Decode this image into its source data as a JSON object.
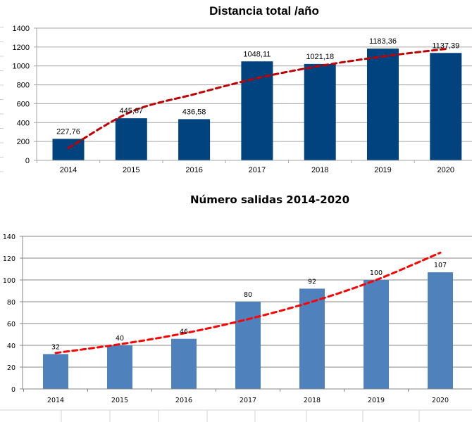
{
  "chart_data": [
    {
      "type": "bar",
      "title": "Distancia total /año",
      "xlabel": "",
      "ylabel": "",
      "categories": [
        "2014",
        "2015",
        "2016",
        "2017",
        "2018",
        "2019",
        "2020"
      ],
      "values": [
        227.76,
        445.67,
        436.58,
        1048.11,
        1021.18,
        1183.36,
        1137.39
      ],
      "data_labels": [
        "227,76",
        "445,67",
        "436,58",
        "1048,11",
        "1021,18",
        "1183,36",
        "1137,39"
      ],
      "ylim": [
        0,
        1400
      ],
      "yticks": [
        0,
        200,
        400,
        600,
        800,
        1000,
        1200,
        1400
      ],
      "grid": true,
      "legend": "none",
      "bar_color": "#00437F",
      "trendline": {
        "type": "logarithmic",
        "style": "dashed",
        "color": "#C00000",
        "values": [
          130,
          515,
          700,
          870,
          1000,
          1100,
          1180
        ]
      }
    },
    {
      "type": "bar",
      "title": "Número salidas 2014-2020",
      "xlabel": "",
      "ylabel": "",
      "categories": [
        "2014",
        "2015",
        "2016",
        "2017",
        "2018",
        "2019",
        "2020"
      ],
      "values": [
        32,
        40,
        46,
        80,
        92,
        100,
        107
      ],
      "data_labels": [
        "32",
        "40",
        "46",
        "80",
        "92",
        "100",
        "107"
      ],
      "ylim": [
        0,
        140
      ],
      "yticks": [
        0,
        20,
        40,
        60,
        80,
        100,
        120,
        140
      ],
      "grid": true,
      "legend": "none",
      "bar_color": "#4F81BD",
      "trendline": {
        "type": "exponential",
        "style": "dashed",
        "color": "#FF0000",
        "values": [
          33,
          41,
          51,
          64,
          80,
          100,
          125
        ]
      }
    }
  ]
}
